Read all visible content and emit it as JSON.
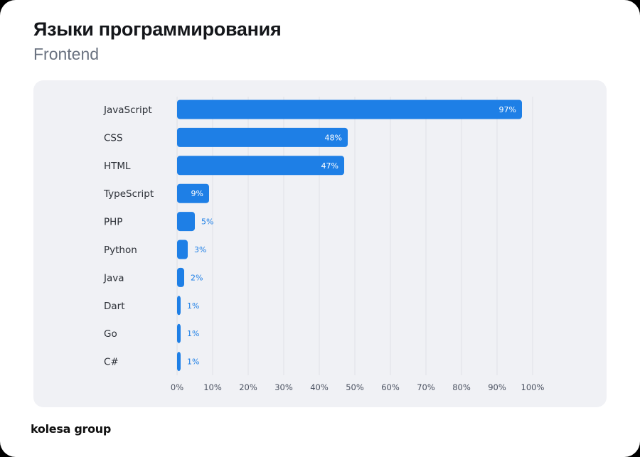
{
  "header": {
    "title": "Языки программирования",
    "subtitle": "Frontend"
  },
  "footer": {
    "brand": "kolesa group"
  },
  "colors": {
    "bar": "#1e7fe6",
    "panel": "#f0f1f5",
    "grid": "#dfe1e6",
    "label_outside": "#1e7fe6",
    "label_inside": "#ffffff",
    "category_text": "#2b2f36",
    "tick_text": "#4a5160"
  },
  "chart_data": {
    "type": "bar",
    "orientation": "horizontal",
    "title": "Языки программирования",
    "subtitle": "Frontend",
    "categories": [
      "JavaScript",
      "CSS",
      "HTML",
      "TypeScript",
      "PHP",
      "Python",
      "Java",
      "Dart",
      "Go",
      "C#"
    ],
    "values": [
      97,
      48,
      47,
      9,
      5,
      3,
      2,
      1,
      1,
      1
    ],
    "value_labels": [
      "97%",
      "48%",
      "47%",
      "9%",
      "5%",
      "3%",
      "2%",
      "1%",
      "1%",
      "1%"
    ],
    "xlim": [
      0,
      100
    ],
    "xticks": [
      "0%",
      "10%",
      "20%",
      "30%",
      "40%",
      "50%",
      "60%",
      "70%",
      "80%",
      "90%",
      "100%"
    ],
    "grid": true,
    "legend": "none"
  }
}
